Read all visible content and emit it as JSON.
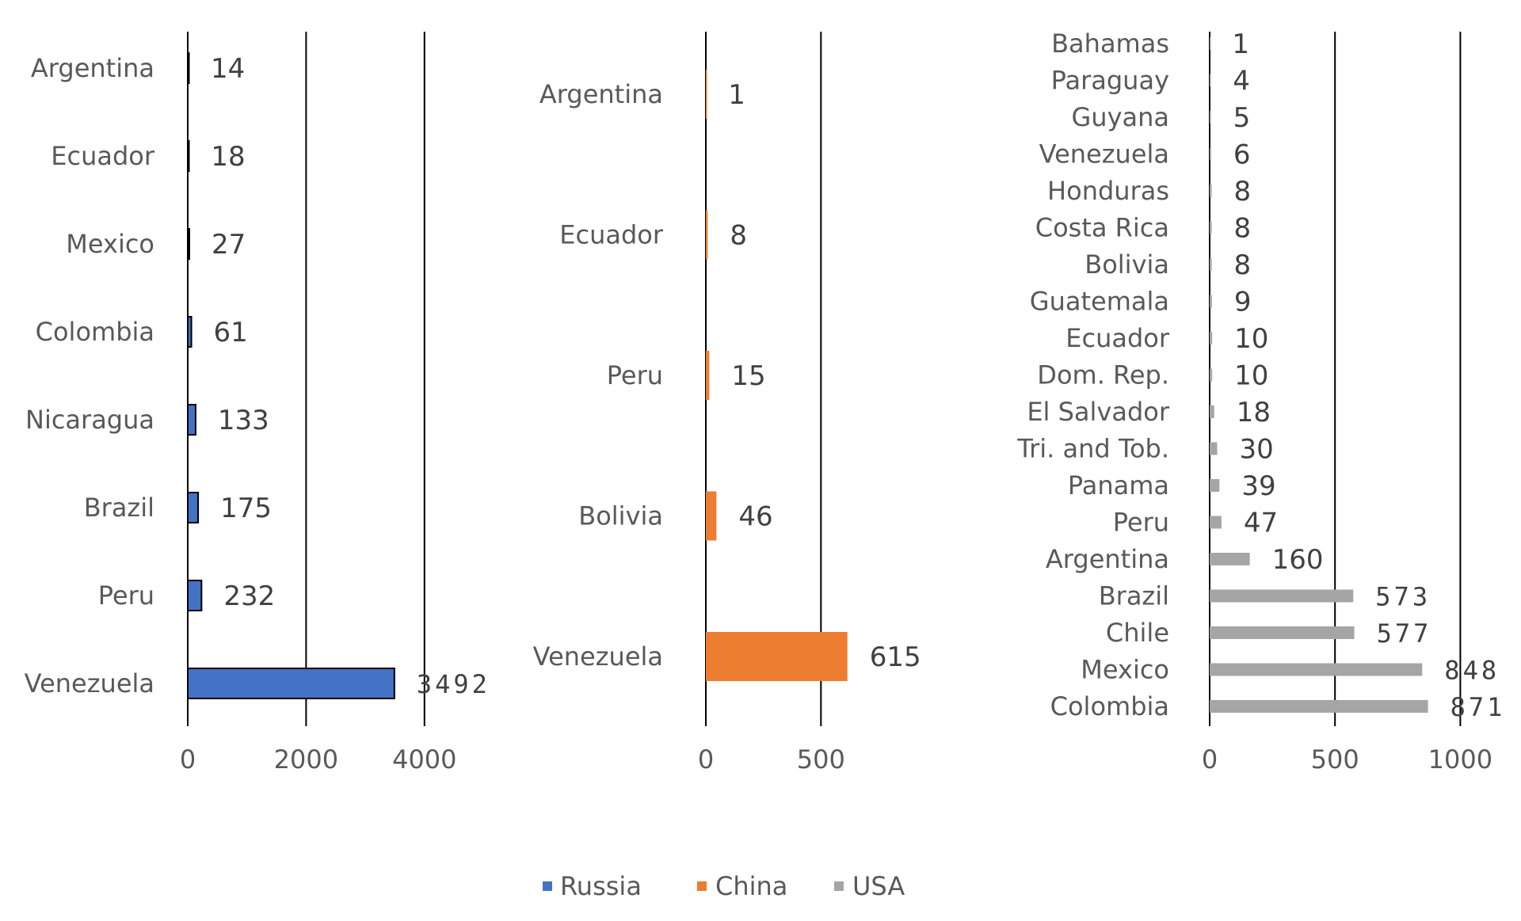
{
  "chart_data": [
    {
      "type": "bar",
      "orientation": "horizontal",
      "series": [
        {
          "name": "Russia",
          "color": "#4472C4"
        }
      ],
      "categories": [
        "Argentina",
        "Ecuador",
        "Mexico",
        "Colombia",
        "Nicaragua",
        "Brazil",
        "Peru",
        "Venezuela"
      ],
      "values": [
        14,
        18,
        27,
        61,
        133,
        175,
        232,
        3492
      ],
      "value_labels": [
        "14",
        "18",
        "27",
        "61",
        "133",
        "175",
        "232",
        "3492"
      ],
      "xlim": [
        0,
        4000
      ],
      "ticks": [
        "0",
        "2000",
        "4000"
      ],
      "tick_values": [
        0,
        2000,
        4000
      ],
      "grid": true
    },
    {
      "type": "bar",
      "orientation": "horizontal",
      "series": [
        {
          "name": "China",
          "color": "#ED7D31"
        }
      ],
      "categories": [
        "Argentina",
        "Ecuador",
        "Peru",
        "Bolivia",
        "Venezuela"
      ],
      "values": [
        1,
        8,
        15,
        46,
        615
      ],
      "value_labels": [
        "1",
        "8",
        "15",
        "46",
        "615"
      ],
      "xlim": [
        0,
        500
      ],
      "ticks": [
        "0",
        "500"
      ],
      "tick_values": [
        0,
        500
      ],
      "grid": true
    },
    {
      "type": "bar",
      "orientation": "horizontal",
      "series": [
        {
          "name": "USA",
          "color": "#A5A5A5"
        }
      ],
      "categories": [
        "Bahamas",
        "Paraguay",
        "Guyana",
        "Venezuela",
        "Honduras",
        "Costa Rica",
        "Bolivia",
        "Guatemala",
        "Ecuador",
        "Dom. Rep.",
        "El Salvador",
        "Tri. and Tob.",
        "Panama",
        "Peru",
        "Argentina",
        "Brazil",
        "Chile",
        "Mexico",
        "Colombia"
      ],
      "values": [
        1,
        4,
        5,
        6,
        8,
        8,
        8,
        9,
        10,
        10,
        18,
        30,
        39,
        47,
        160,
        573,
        577,
        848,
        871
      ],
      "value_labels": [
        "1",
        "4",
        "5",
        "6",
        "8",
        "8",
        "8",
        "9",
        "10",
        "10",
        "18",
        "30",
        "39",
        "47",
        "160",
        "573",
        "577",
        "848",
        "871"
      ],
      "xlim": [
        0,
        1000
      ],
      "ticks": [
        "0",
        "500",
        "1000"
      ],
      "tick_values": [
        0,
        500,
        1000
      ],
      "grid": true
    }
  ],
  "legend": {
    "placement": "bottom",
    "items": [
      {
        "name": "Russia",
        "color": "#4472C4"
      },
      {
        "name": "China",
        "color": "#ED7D31"
      },
      {
        "name": "USA",
        "color": "#A5A5A5"
      }
    ]
  }
}
